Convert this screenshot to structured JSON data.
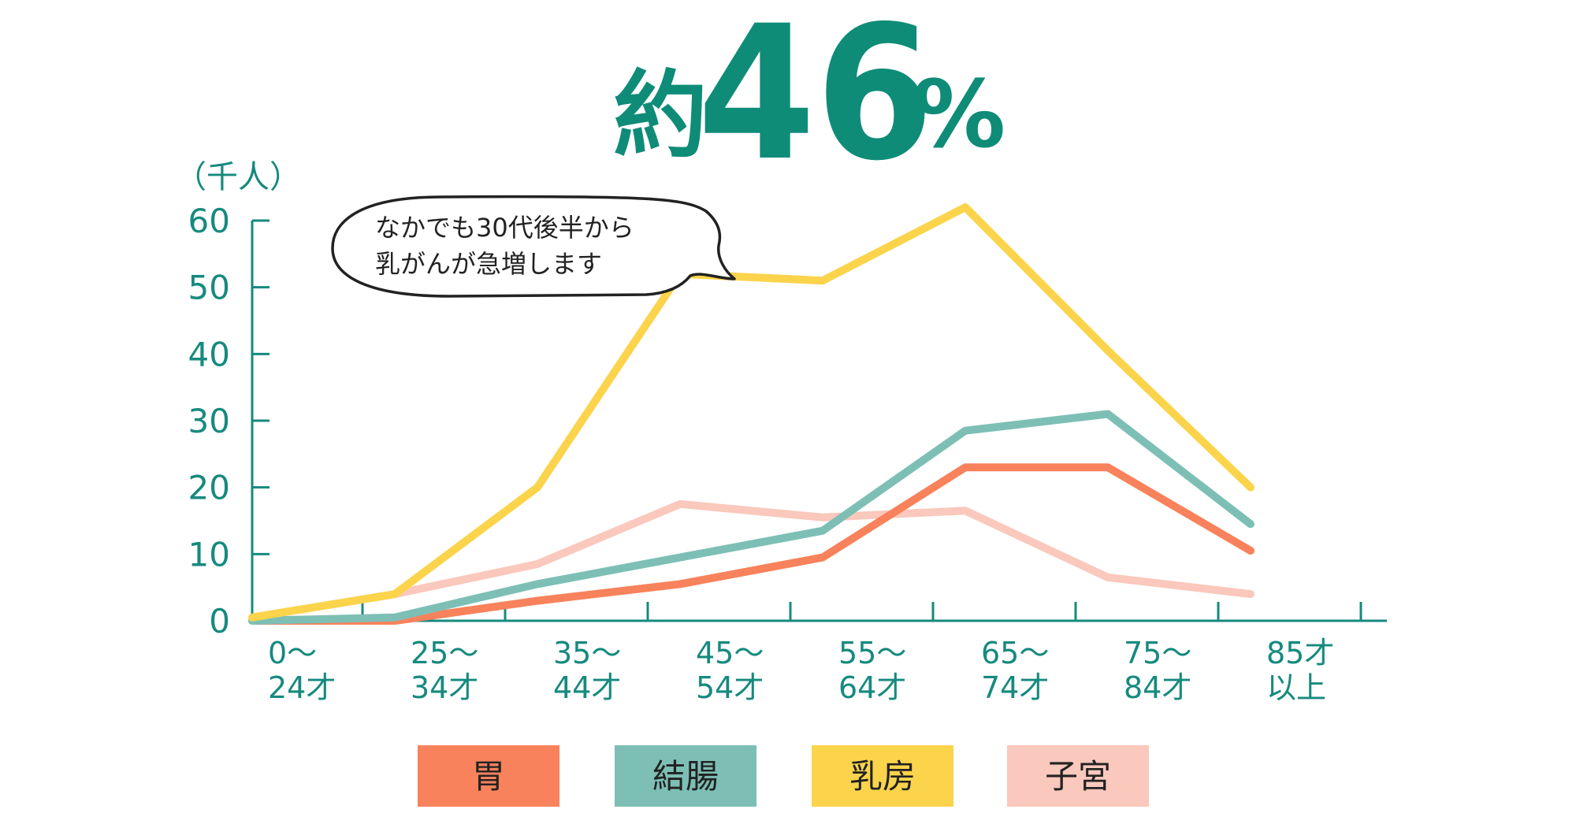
{
  "colors": {
    "accent": "#0f8c78",
    "axis": "#168a7e",
    "callout_text": "#222222"
  },
  "chart_data": {
    "type": "line",
    "headline": {
      "prefix": "約",
      "number": "46",
      "unit": "%"
    },
    "y_unit_label": "（千人）",
    "y_ticks": [
      "0",
      "10",
      "20",
      "30",
      "40",
      "50",
      "60"
    ],
    "ylim": [
      0,
      60
    ],
    "categories": [
      {
        "line1": "0〜",
        "line2": "24才"
      },
      {
        "line1": "25〜",
        "line2": "34才"
      },
      {
        "line1": "35〜",
        "line2": "44才"
      },
      {
        "line1": "45〜",
        "line2": "54才"
      },
      {
        "line1": "55〜",
        "line2": "64才"
      },
      {
        "line1": "65〜",
        "line2": "74才"
      },
      {
        "line1": "75〜",
        "line2": "84才"
      },
      {
        "line1": "85才",
        "line2": "以上"
      }
    ],
    "series": [
      {
        "name": "子宮",
        "color": "#fac8bc",
        "values": [
          0.5,
          4,
          8.5,
          17.5,
          15.5,
          16.5,
          6.5,
          4
        ]
      },
      {
        "name": "胃",
        "color": "#f7825c",
        "values": [
          0,
          0,
          3,
          5.5,
          9.5,
          23,
          23,
          10.5
        ]
      },
      {
        "name": "結腸",
        "color": "#7dbfb5",
        "values": [
          0,
          0.5,
          5.5,
          9.5,
          13.5,
          28.5,
          31,
          14.5
        ]
      },
      {
        "name": "乳房",
        "color": "#fbd44c",
        "values": [
          0.5,
          4,
          20,
          52,
          51,
          62,
          40.5,
          20
        ]
      }
    ],
    "callout": {
      "line1": "なかでも30代後半から",
      "line2": "乳がんが急増します"
    },
    "legend": [
      {
        "label": "胃",
        "color": "#f7825c"
      },
      {
        "label": "結腸",
        "color": "#7dbfb5"
      },
      {
        "label": "乳房",
        "color": "#fbd44c"
      },
      {
        "label": "子宮",
        "color": "#fac8bc"
      }
    ]
  }
}
